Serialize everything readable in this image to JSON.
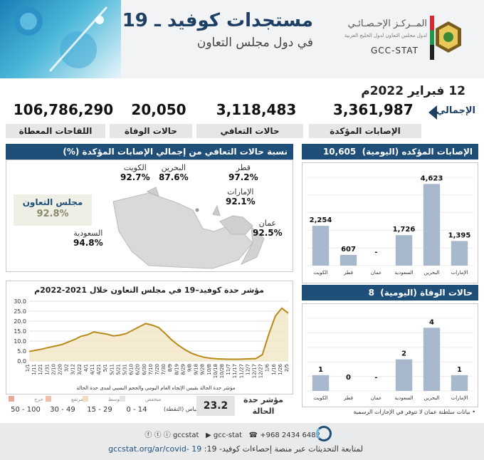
{
  "header": {
    "title": "مستجدات كوفيد ـ 19",
    "subtitle": "في دول مجلس التعاون",
    "logo_ar": "المــركـز الإحـصـائـي",
    "logo_ar_sub": "لدول مجلس التعاون لدول الخليج العربية",
    "logo_en": "GCC-STAT"
  },
  "date": "12 فبراير 2022م",
  "totals": {
    "label": "الإجمالي",
    "items": [
      {
        "label": "الإصابات المؤكدة",
        "value": "3,361,987"
      },
      {
        "label": "حالات التعافي",
        "value": "3,118,483"
      },
      {
        "label": "حالات الوفاة",
        "value": "20,050"
      },
      {
        "label": "اللقاحات المعطاة",
        "value": "106,786,290"
      }
    ]
  },
  "map": {
    "title": "نسبة حالات التعافي من إجمالي الإصابات المؤكدة (%)",
    "gcc_label": "مجلس التعاون",
    "gcc_value": "92.8%",
    "countries": [
      {
        "name": "الكويت",
        "value": "92.7%"
      },
      {
        "name": "البحرين",
        "value": "87.6%"
      },
      {
        "name": "قطر",
        "value": "97.2%"
      },
      {
        "name": "الإمارات",
        "value": "92.1%"
      },
      {
        "name": "عمان",
        "value": "92.5%"
      },
      {
        "name": "السعودية",
        "value": "94.8%"
      }
    ]
  },
  "chart_data": [
    {
      "type": "line",
      "title": "مؤشر حدة كوفيد–19 في مجلس التعاون خلال 2021-2022م",
      "xlabel": "مؤشر حدة الحالة يقيس الإتجاه العام اليومي والحجم النسبي لمدى حدة الحالة",
      "ylim": [
        0,
        30
      ],
      "yticks": [
        "0.0",
        "5.0",
        "10.0",
        "15.0",
        "20.0",
        "25.0",
        "30.0"
      ],
      "x": [
        "1/1",
        "1/11",
        "1/21",
        "1/31",
        "2/10",
        "2/20",
        "3/2",
        "3/12",
        "3/22",
        "4/1",
        "4/11",
        "4/21",
        "5/1",
        "5/11",
        "5/21",
        "5/31",
        "6/10",
        "6/20",
        "6/30",
        "7/10",
        "7/20",
        "7/30",
        "8/9",
        "8/19",
        "8/29",
        "9/8",
        "9/18",
        "9/28",
        "10/8",
        "10/18",
        "10/28",
        "11/7",
        "11/17",
        "11/27",
        "12/7",
        "12/17",
        "12/27",
        "1/6",
        "1/16",
        "1/26",
        "2/5"
      ],
      "values": [
        4.8,
        5.4,
        6.0,
        6.8,
        7.5,
        8.2,
        9.5,
        10.8,
        12.4,
        13.2,
        14.6,
        14.0,
        13.5,
        12.6,
        13.0,
        13.8,
        15.5,
        17.2,
        18.8,
        18.0,
        16.8,
        13.8,
        10.6,
        8.0,
        5.8,
        4.0,
        2.8,
        1.9,
        1.4,
        1.1,
        1.0,
        0.9,
        0.9,
        1.0,
        1.1,
        1.2,
        3.2,
        13.5,
        22.5,
        26.5,
        24.0
      ],
      "grid": true
    },
    {
      "type": "bar",
      "title": "الإصابات المؤكده (اليومية)",
      "total": "10,605",
      "categories": [
        "الكويت",
        "قطر",
        "عمان",
        "السعودية",
        "البحرين",
        "الإمارات"
      ],
      "values": [
        2254,
        607,
        null,
        1726,
        4623,
        1395
      ],
      "labels": [
        "2,254",
        "607",
        "-",
        "1,726",
        "4,623",
        "1,395"
      ],
      "ylim": [
        0,
        5000
      ],
      "grid": true
    },
    {
      "type": "bar",
      "title": "حالات الوفاة (اليومية)",
      "total": "8",
      "categories": [
        "الكويت",
        "قطر",
        "عمان",
        "السعودية",
        "البحرين",
        "الإمارات"
      ],
      "values": [
        1,
        0,
        null,
        2,
        4,
        1
      ],
      "labels": [
        "1",
        "0",
        "-",
        "2",
        "4",
        "1"
      ],
      "ylim": [
        0,
        4.6
      ],
      "note": "• بيانات سلطنة عمان لا تتوفر في الإجازات الرسمية",
      "grid": true
    }
  ],
  "severity": {
    "label": "مؤشر حدة الحالة",
    "value": "23.2",
    "scale_label": "المقياس (النقطة)",
    "levels": [
      {
        "name": "منخفض",
        "range": "0 - 14",
        "color": "#e3e3e3"
      },
      {
        "name": "متوسط",
        "range": "15 - 29",
        "color": "#f4dcbf"
      },
      {
        "name": "مرتفع",
        "range": "30 - 49",
        "color": "#f0c0a6"
      },
      {
        "name": "حرج",
        "range": "50 - 100",
        "color": "#e9a59a"
      }
    ]
  },
  "footer": {
    "phone": "+968 2434 6482",
    "handle1": "gcc-stat",
    "handle2": "gccstat",
    "follow_text": "لمتابعة التحديثات عبر منصة إحصاءات كوفيد- 19:",
    "url": "gccstat.org/ar/covid- 19"
  },
  "colors": {
    "navy": "#1f4e79",
    "bar": "#a8b8cc",
    "line": "#b88a1a",
    "band": "#f2e6c4"
  }
}
